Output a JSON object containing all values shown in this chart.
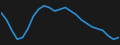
{
  "x": [
    0,
    1,
    2,
    3,
    4,
    5,
    6,
    7,
    8,
    9,
    10,
    11,
    12,
    13,
    14,
    15,
    16,
    17,
    18,
    19,
    20,
    21,
    22
  ],
  "y": [
    18,
    14,
    8,
    3,
    4,
    9,
    16,
    20,
    22,
    21,
    19,
    20,
    21,
    19,
    17,
    14,
    12,
    10,
    9,
    8,
    5,
    3,
    4
  ],
  "line_color": "#2b8fd4",
  "line_width": 1.2,
  "background_color": "#1a1a1a"
}
